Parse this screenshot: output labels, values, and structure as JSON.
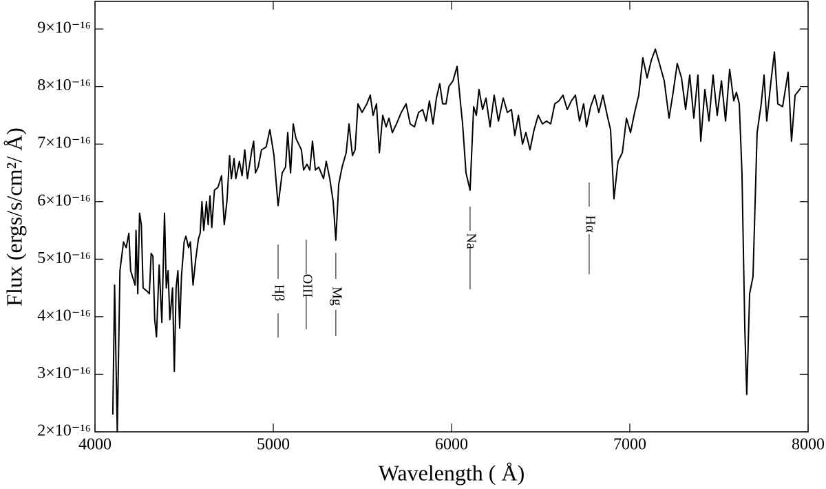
{
  "chart_data": {
    "type": "line",
    "xlabel": "Wavelength ( Å)",
    "ylabel": "Flux (ergs/s/cm²/ Å)",
    "xlim": [
      4000,
      8000
    ],
    "xticks": [
      4000,
      5000,
      6000,
      7000,
      8000
    ],
    "ylim": [
      2e-16,
      9.48e-16
    ],
    "yticks": [
      {
        "value": 2e-16,
        "label": "2×10⁻¹⁶"
      },
      {
        "value": 3e-16,
        "label": "3×10⁻¹⁶"
      },
      {
        "value": 4e-16,
        "label": "4×10⁻¹⁶"
      },
      {
        "value": 5e-16,
        "label": "5×10⁻¹⁶"
      },
      {
        "value": 6e-16,
        "label": "6×10⁻¹⁶"
      },
      {
        "value": 7e-16,
        "label": "7×10⁻¹⁶"
      },
      {
        "value": 8e-16,
        "label": "8×10⁻¹⁶"
      },
      {
        "value": 9e-16,
        "label": "9×10⁻¹⁶"
      }
    ],
    "color": "#000000",
    "annotations": [
      {
        "text": "Hβ",
        "x": 5027
      },
      {
        "text": "OIII",
        "x": 5185
      },
      {
        "text": "Mg",
        "x": 5351
      },
      {
        "text": "Na",
        "x": 6104
      },
      {
        "text": "Hα",
        "x": 6772
      }
    ],
    "x": [
      4100,
      4110,
      4125,
      4140,
      4160,
      4175,
      4190,
      4200,
      4225,
      4230,
      4240,
      4250,
      4260,
      4270,
      4290,
      4305,
      4315,
      4325,
      4335,
      4345,
      4360,
      4375,
      4390,
      4400,
      4410,
      4420,
      4435,
      4445,
      4455,
      4465,
      4475,
      4485,
      4500,
      4510,
      4525,
      4535,
      4550,
      4565,
      4580,
      4590,
      4600,
      4610,
      4625,
      4635,
      4645,
      4655,
      4670,
      4690,
      4710,
      4725,
      4740,
      4755,
      4765,
      4780,
      4790,
      4810,
      4825,
      4840,
      4855,
      4870,
      4880,
      4890,
      4900,
      4915,
      4934,
      4960,
      4981,
      5004,
      5027,
      5050,
      5069,
      5081,
      5097,
      5112,
      5127,
      5158,
      5170,
      5189,
      5205,
      5220,
      5236,
      5255,
      5282,
      5297,
      5317,
      5336,
      5351,
      5367,
      5386,
      5409,
      5425,
      5444,
      5459,
      5475,
      5498,
      5525,
      5544,
      5560,
      5579,
      5595,
      5614,
      5633,
      5649,
      5668,
      5691,
      5718,
      5745,
      5768,
      5792,
      5815,
      5838,
      5857,
      5876,
      5896,
      5915,
      5934,
      5950,
      5969,
      5985,
      6008,
      6031,
      6046,
      6062,
      6081,
      6104,
      6124,
      6139,
      6154,
      6174,
      6193,
      6216,
      6239,
      6263,
      6290,
      6313,
      6336,
      6355,
      6375,
      6398,
      6417,
      6440,
      6463,
      6486,
      6510,
      6533,
      6556,
      6579,
      6602,
      6625,
      6649,
      6672,
      6695,
      6718,
      6741,
      6757,
      6780,
      6803,
      6826,
      6849,
      6873,
      6892,
      6911,
      6934,
      6958,
      6981,
      7004,
      7027,
      7050,
      7073,
      7097,
      7120,
      7143,
      7166,
      7193,
      7220,
      7243,
      7266,
      7290,
      7313,
      7336,
      7359,
      7382,
      7398,
      7421,
      7444,
      7467,
      7490,
      7514,
      7537,
      7560,
      7583,
      7598,
      7614,
      7629,
      7645,
      7656,
      7672,
      7691,
      7714,
      7737,
      7753,
      7768,
      7792,
      7811,
      7830,
      7857,
      7888,
      7907,
      7927,
      7958
    ],
    "values": [
      2.3e-16,
      4.55e-16,
      2e-16,
      4.8e-16,
      5.3e-16,
      5.2e-16,
      5.45e-16,
      4.8e-16,
      4.55e-16,
      5.5e-16,
      4.4e-16,
      5.8e-16,
      5.6e-16,
      4.5e-16,
      4.45e-16,
      4.4e-16,
      5.1e-16,
      5.05e-16,
      3.95e-16,
      3.65e-16,
      4.9e-16,
      3.9e-16,
      5.8e-16,
      4.5e-16,
      4.8e-16,
      3.95e-16,
      4.5e-16,
      3.05e-16,
      4.5e-16,
      4.8e-16,
      3.8e-16,
      4.7e-16,
      5.3e-16,
      5.4e-16,
      5.2e-16,
      5.3e-16,
      4.55e-16,
      5e-16,
      5.35e-16,
      5.45e-16,
      6e-16,
      5.5e-16,
      6e-16,
      5.6e-16,
      6.1e-16,
      5.55e-16,
      6.2e-16,
      6.25e-16,
      6.45e-16,
      5.6e-16,
      6e-16,
      6.8e-16,
      6.4e-16,
      6.75e-16,
      6.4e-16,
      6.7e-16,
      6.45e-16,
      6.9e-16,
      6.4e-16,
      6.7e-16,
      6.9e-16,
      7.05e-16,
      6.5e-16,
      6.6e-16,
      6.9e-16,
      6.95e-16,
      7.25e-16,
      6.8e-16,
      5.93e-16,
      6.5e-16,
      6.6e-16,
      7.2e-16,
      6.5e-16,
      7.35e-16,
      7.1e-16,
      6.9e-16,
      6.55e-16,
      6.65e-16,
      6.55e-16,
      7.05e-16,
      6.55e-16,
      6.6e-16,
      6.4e-16,
      6.7e-16,
      6.4e-16,
      6e-16,
      5.33e-16,
      6.3e-16,
      6.6e-16,
      6.85e-16,
      7.35e-16,
      6.8e-16,
      6.9e-16,
      7.7e-16,
      7.55e-16,
      7.7e-16,
      7.85e-16,
      7.5e-16,
      7.7e-16,
      6.85e-16,
      7.5e-16,
      7.3e-16,
      7.45e-16,
      7.2e-16,
      7.35e-16,
      7.55e-16,
      7.7e-16,
      7.35e-16,
      7.3e-16,
      7.55e-16,
      7.6e-16,
      7.4e-16,
      7.75e-16,
      7.35e-16,
      7.8e-16,
      8.05e-16,
      7.7e-16,
      7.7e-16,
      8e-16,
      8.1e-16,
      8.35e-16,
      7.85e-16,
      7.35e-16,
      6.5e-16,
      6.2e-16,
      7.65e-16,
      7.5e-16,
      7.95e-16,
      7.6e-16,
      7.8e-16,
      7.3e-16,
      7.85e-16,
      7.4e-16,
      7.8e-16,
      7.55e-16,
      7.6e-16,
      7.15e-16,
      7.5e-16,
      7e-16,
      7.2e-16,
      6.9e-16,
      7.25e-16,
      7.5e-16,
      7.35e-16,
      7.4e-16,
      7.35e-16,
      7.7e-16,
      7.75e-16,
      7.85e-16,
      7.6e-16,
      7.75e-16,
      7.85e-16,
      7.4e-16,
      7.7e-16,
      7.3e-16,
      7.65e-16,
      7.85e-16,
      7.55e-16,
      7.85e-16,
      7.5e-16,
      7.25e-16,
      6.05e-16,
      6.7e-16,
      6.85e-16,
      7.45e-16,
      7.2e-16,
      7.55e-16,
      7.85e-16,
      8.5e-16,
      8.15e-16,
      8.45e-16,
      8.65e-16,
      8.4e-16,
      8.1e-16,
      7.45e-16,
      7.9e-16,
      8.4e-16,
      8.15e-16,
      7.6e-16,
      8.2e-16,
      7.45e-16,
      8.2e-16,
      7.05e-16,
      7.95e-16,
      7.4e-16,
      8.2e-16,
      7.5e-16,
      8.1e-16,
      7.4e-16,
      8.3e-16,
      7.75e-16,
      7.9e-16,
      7.7e-16,
      6.5e-16,
      3.8e-16,
      2.65e-16,
      4.4e-16,
      4.7e-16,
      7.2e-16,
      7.7e-16,
      8.2e-16,
      7.4e-16,
      8.1e-16,
      8.6e-16,
      7.7e-16,
      7.65e-16,
      8.25e-16,
      7.05e-16,
      7.85e-16,
      7.97e-16
    ]
  }
}
